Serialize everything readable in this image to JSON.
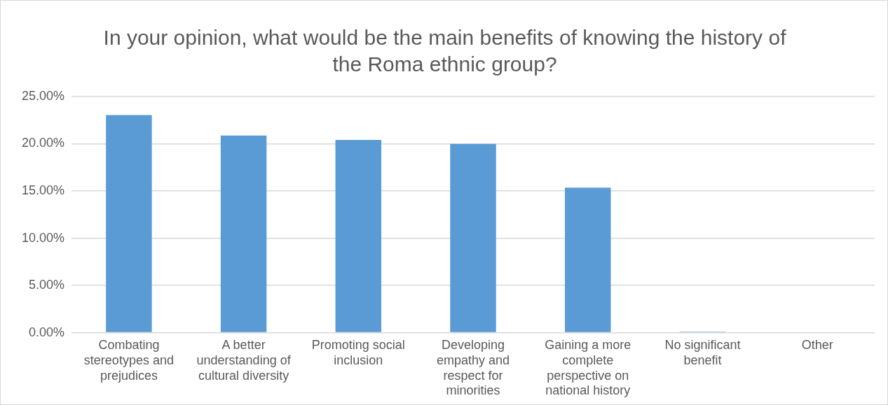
{
  "chart_data": {
    "type": "bar",
    "title": "In your opinion, what would be the main benefits of knowing the history of the Roma ethnic group?",
    "categories": [
      "Combating stereotypes and prejudices",
      "A better understanding of cultural diversity",
      "Promoting social inclusion",
      "Developing empathy and respect for minorities",
      "Gaining a more complete perspective on national history",
      "No significant benefit",
      "Other"
    ],
    "values": [
      23.04,
      20.88,
      20.41,
      19.98,
      15.35,
      0.1,
      0
    ],
    "color": "#5b9bd5",
    "ylim": [
      0,
      25
    ],
    "yticks": [
      {
        "value": 0,
        "label": "0.00%"
      },
      {
        "value": 5,
        "label": "5.00%"
      },
      {
        "value": 10,
        "label": "10.00%"
      },
      {
        "value": 15,
        "label": "15.00%"
      },
      {
        "value": 20,
        "label": "20.00%"
      },
      {
        "value": 25,
        "label": "25.00%"
      }
    ],
    "grid": "y",
    "legend": false
  }
}
